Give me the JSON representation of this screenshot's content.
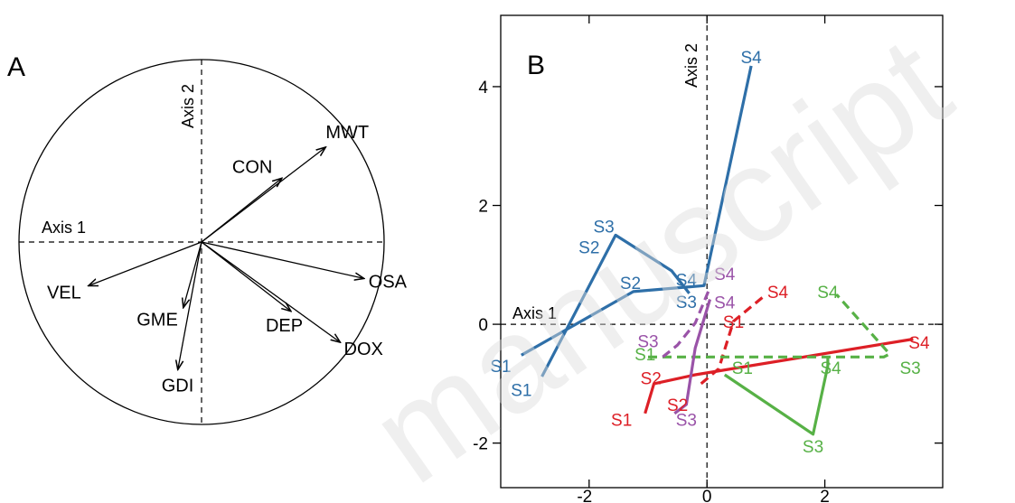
{
  "watermark": "manuscript",
  "chart_data": [
    {
      "type": "biplot",
      "panel_label": "A",
      "axis1_label": "Axis 1",
      "axis2_label": "Axis 2",
      "unit_circle": true,
      "vectors": [
        {
          "name": "MWT",
          "x": 0.68,
          "y": 0.52
        },
        {
          "name": "CON",
          "x": 0.44,
          "y": 0.35
        },
        {
          "name": "OSA",
          "x": 0.89,
          "y": -0.2
        },
        {
          "name": "DOX",
          "x": 0.76,
          "y": -0.55
        },
        {
          "name": "DEP",
          "x": 0.49,
          "y": -0.38
        },
        {
          "name": "VEL",
          "x": -0.62,
          "y": -0.24
        },
        {
          "name": "GME",
          "x": -0.1,
          "y": -0.36
        },
        {
          "name": "GDI",
          "x": -0.13,
          "y": -0.7
        }
      ]
    },
    {
      "type": "line",
      "panel_label": "B",
      "axis1_label": "Axis 1",
      "axis2_label": "Axis 2",
      "xlim": [
        -3.5,
        4.0
      ],
      "ylim": [
        -2.75,
        5.2
      ],
      "x_ticks": [
        -2,
        0,
        2
      ],
      "y_ticks": [
        -2,
        0,
        2,
        4
      ],
      "series": [
        {
          "color": "#2e6fa8",
          "dashed": false,
          "points": [
            {
              "label": "S1",
              "x": -3.15,
              "y": -0.52
            },
            {
              "label": "S2",
              "x": -1.25,
              "y": 0.55
            },
            {
              "label": "S3",
              "x": -0.05,
              "y": 0.65
            },
            {
              "label": "S4",
              "x": 0.75,
              "y": 4.35
            }
          ]
        },
        {
          "color": "#2e6fa8",
          "dashed": false,
          "points": [
            {
              "label": "S1",
              "x": -2.8,
              "y": -0.88
            },
            {
              "label": "S2",
              "x": -1.55,
              "y": 1.5
            },
            {
              "label": "S3",
              "x": -0.6,
              "y": 0.9
            },
            {
              "label": "S4",
              "x": -0.3,
              "y": 0.52
            }
          ]
        },
        {
          "color": "#dd1f26",
          "dashed": false,
          "points": [
            {
              "label": "S1",
              "x": -1.05,
              "y": -1.5
            },
            {
              "label": "S2",
              "x": -0.9,
              "y": -1.0
            },
            {
              "label": "S3",
              "x": -0.2,
              "y": -0.85
            },
            {
              "label": "S4",
              "x": 3.5,
              "y": -0.25
            }
          ]
        },
        {
          "color": "#dd1f26",
          "dashed": true,
          "points": [
            {
              "label": "S1",
              "x": -0.1,
              "y": -1.0
            },
            {
              "label": "S2",
              "x": 0.2,
              "y": -0.75
            },
            {
              "label": "S3",
              "x": 0.45,
              "y": 0.05
            },
            {
              "label": "S4",
              "x": 1.0,
              "y": 0.5
            }
          ]
        },
        {
          "color": "#57b146",
          "dashed": false,
          "points": [
            {
              "label": "S1",
              "x": 0.3,
              "y": -0.85
            },
            {
              "label": "S2",
              "x": 1.8,
              "y": -1.85
            },
            {
              "label": "S3",
              "x": 2.05,
              "y": -0.7
            },
            {
              "label": "S4",
              "x": 2.05,
              "y": -0.55
            }
          ]
        },
        {
          "color": "#57b146",
          "dashed": true,
          "points": [
            {
              "label": "S1",
              "x": -1.0,
              "y": -0.55
            },
            {
              "label": "S2",
              "x": 3.0,
              "y": -0.55
            },
            {
              "label": "S3",
              "x": 3.1,
              "y": -0.5
            },
            {
              "label": "S4",
              "x": 2.2,
              "y": 0.5
            }
          ]
        },
        {
          "color": "#9a53a8",
          "dashed": false,
          "points": [
            {
              "label": "S1",
              "x": -0.55,
              "y": -1.5
            },
            {
              "label": "S2",
              "x": -0.35,
              "y": -1.35
            },
            {
              "label": "S3",
              "x": -0.2,
              "y": -0.4
            },
            {
              "label": "S4",
              "x": 0.05,
              "y": 0.42
            }
          ]
        },
        {
          "color": "#9a53a8",
          "dashed": true,
          "points": [
            {
              "label": "S1",
              "x": -0.75,
              "y": -0.55
            },
            {
              "label": "S2",
              "x": -0.5,
              "y": -0.35
            },
            {
              "label": "S3",
              "x": -0.2,
              "y": 0.02
            },
            {
              "label": "S4",
              "x": 0.05,
              "y": 0.62
            }
          ]
        }
      ],
      "point_labels": [
        {
          "text": "S4",
          "x": 0.75,
          "y": 4.5,
          "color": "#2e6fa8"
        },
        {
          "text": "S3",
          "x": -1.75,
          "y": 1.65,
          "color": "#2e6fa8"
        },
        {
          "text": "S2",
          "x": -2.0,
          "y": 1.3,
          "color": "#2e6fa8"
        },
        {
          "text": "S4",
          "x": -0.35,
          "y": 0.75,
          "color": "#2e6fa8"
        },
        {
          "text": "S2",
          "x": -1.3,
          "y": 0.7,
          "color": "#2e6fa8"
        },
        {
          "text": "S3",
          "x": -0.35,
          "y": 0.38,
          "color": "#2e6fa8"
        },
        {
          "text": "S1",
          "x": -3.5,
          "y": -0.7,
          "color": "#2e6fa8"
        },
        {
          "text": "S1",
          "x": -3.15,
          "y": -1.1,
          "color": "#2e6fa8"
        },
        {
          "text": "S4",
          "x": 0.3,
          "y": 0.85,
          "color": "#9a53a8"
        },
        {
          "text": "S4",
          "x": 0.3,
          "y": 0.37,
          "color": "#9a53a8"
        },
        {
          "text": "S3",
          "x": -1.0,
          "y": -0.28,
          "color": "#9a53a8"
        },
        {
          "text": "S3",
          "x": -0.35,
          "y": -1.6,
          "color": "#9a53a8"
        },
        {
          "text": "S4",
          "x": 1.2,
          "y": 0.55,
          "color": "#dd1f26"
        },
        {
          "text": "S1",
          "x": 0.45,
          "y": 0.05,
          "color": "#dd1f26"
        },
        {
          "text": "S2",
          "x": -0.95,
          "y": -0.9,
          "color": "#dd1f26"
        },
        {
          "text": "S2",
          "x": -0.5,
          "y": -1.35,
          "color": "#dd1f26"
        },
        {
          "text": "S1",
          "x": -1.45,
          "y": -1.6,
          "color": "#dd1f26"
        },
        {
          "text": "S4",
          "x": 3.6,
          "y": -0.3,
          "color": "#dd1f26"
        },
        {
          "text": "S4",
          "x": 2.05,
          "y": 0.55,
          "color": "#57b146"
        },
        {
          "text": "S1",
          "x": -1.05,
          "y": -0.5,
          "color": "#57b146"
        },
        {
          "text": "S1",
          "x": 0.6,
          "y": -0.73,
          "color": "#57b146"
        },
        {
          "text": "S4",
          "x": 2.1,
          "y": -0.73,
          "color": "#57b146"
        },
        {
          "text": "S3",
          "x": 3.45,
          "y": -0.73,
          "color": "#57b146"
        },
        {
          "text": "S3",
          "x": 1.8,
          "y": -2.05,
          "color": "#57b146"
        }
      ]
    }
  ]
}
